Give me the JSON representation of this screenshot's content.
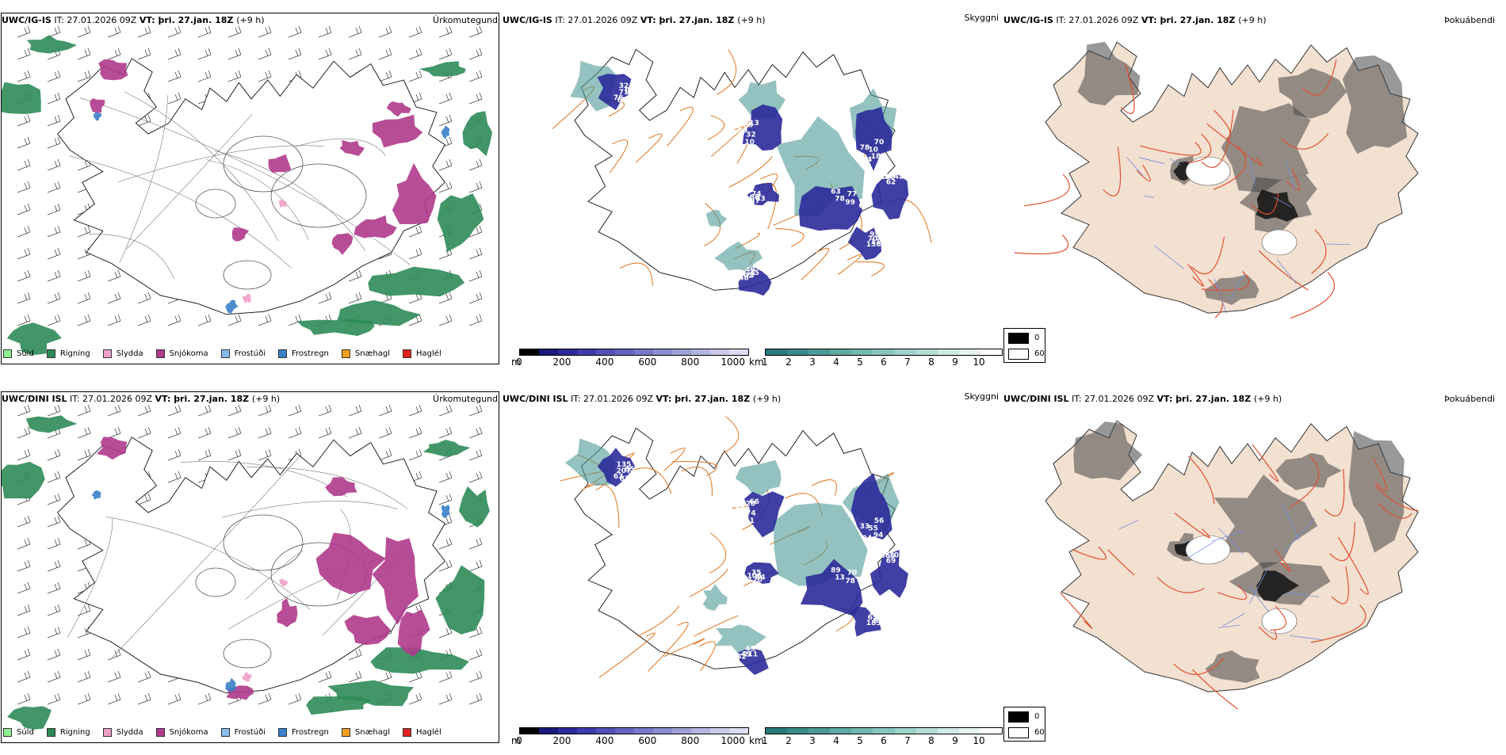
{
  "rows": [
    {
      "model": "UWC/IG-IS",
      "it_label": "IT:",
      "it_value": "27.01.2026 09Z",
      "vt_label": "VT:",
      "vt_value": "þri. 27.jan. 18Z",
      "lead": "(+9 h)"
    },
    {
      "model": "UWC/DINI ISL",
      "it_label": "IT:",
      "it_value": "27.01.2026 09Z",
      "vt_label": "VT:",
      "vt_value": "þri. 27.jan. 18Z",
      "lead": "(+9 h)"
    }
  ],
  "panels": {
    "precip_title": "Úrkomutegund",
    "visibility_title": "Skyggni",
    "fog_title": "Þokuábendi"
  },
  "precip_legend": [
    {
      "label": "Súld",
      "color": "#90ee90"
    },
    {
      "label": "Rigning",
      "color": "#2e8b57"
    },
    {
      "label": "Slydda",
      "color": "#f0a0c8"
    },
    {
      "label": "Snjókoma",
      "color": "#b03a8c"
    },
    {
      "label": "Frostúði",
      "color": "#88bbee"
    },
    {
      "label": "Frostregn",
      "color": "#3a7fc8"
    },
    {
      "label": "Snæhagl",
      "color": "#f0a020"
    },
    {
      "label": "Haglél",
      "color": "#e02020"
    }
  ],
  "height_bar": {
    "unit": "m",
    "ticks": [
      "0",
      "200",
      "400",
      "600",
      "800",
      "1000"
    ],
    "colors": [
      "#000000",
      "#1a1a7a",
      "#2a2a9a",
      "#3c3cab",
      "#5050b8",
      "#6464c0",
      "#7878c8",
      "#8c8cd0",
      "#a0a0d8",
      "#b4b4e0",
      "#c8c8ea",
      "#dcdcf2"
    ]
  },
  "vis_bar": {
    "unit": "km",
    "ticks": [
      "1",
      "2",
      "3",
      "4",
      "5",
      "6",
      "7",
      "8",
      "9",
      "10"
    ],
    "colors": [
      "#2a7a7a",
      "#3a8a88",
      "#4c9a96",
      "#5eaaa4",
      "#72b8b2",
      "#88c6c0",
      "#a0d2cc",
      "#b8ded8",
      "#d0eae6",
      "#e8f4f2",
      "#ffffff"
    ]
  },
  "fog_legend": [
    {
      "label": "0",
      "color": "#000000"
    },
    {
      "label": "60",
      "color": "#ffffff"
    }
  ],
  "row1_vis_labels": [
    "32",
    "10",
    "63",
    "70",
    "148",
    "95",
    "83",
    "64",
    "08",
    "32",
    "78",
    "182",
    "202",
    "70",
    "87",
    "106",
    "71",
    "59",
    "77",
    "10",
    "77",
    "113",
    "68",
    "62",
    "635",
    "88",
    "99",
    "84",
    "49",
    "138",
    "74",
    "142",
    "76",
    "13",
    "67",
    "78",
    "35"
  ],
  "row2_vis_labels": [
    "135",
    "11",
    "89",
    "56",
    "82",
    "63",
    "84",
    "228",
    "85",
    "74",
    "13",
    "94",
    "49",
    "65",
    "120",
    "866",
    "207",
    "420",
    "70",
    "55",
    "211",
    "80",
    "106",
    "69",
    "87",
    "120",
    "78",
    "84",
    "45",
    "183",
    "35",
    "103",
    "63",
    "66",
    "56",
    "33"
  ]
}
